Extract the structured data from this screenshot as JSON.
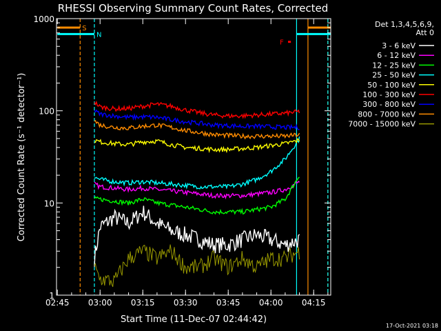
{
  "chart_data": {
    "type": "line",
    "title": "RHESSI Observing Summary Count Rates, Corrected",
    "xlabel": "Start Time (11-Dec-07 02:44:42)",
    "ylabel": "Corrected Count Rate (s⁻¹ detector⁻¹)",
    "xscale": "time",
    "yscale": "log",
    "xlim": [
      "02:44:42",
      "04:21:00"
    ],
    "ylim": [
      1,
      1000
    ],
    "xticks": [
      "02:45",
      "03:00",
      "03:15",
      "03:30",
      "03:45",
      "04:00",
      "04:15"
    ],
    "yticks": [
      "1",
      "10",
      "100",
      "1000"
    ],
    "legend": {
      "title_lines": [
        "Det 1,3,4,5,6,9,",
        "Att 0"
      ],
      "placement": "right-outside"
    },
    "footer_date": "17-Oct-2021 03:18",
    "series": [
      {
        "name": "3 - 6 keV",
        "color": "#ffffff",
        "x": [
          "02:58",
          "03:00",
          "03:05",
          "03:10",
          "03:15",
          "03:20",
          "03:25",
          "03:30",
          "03:35",
          "03:40",
          "03:45",
          "03:50",
          "03:55",
          "04:00",
          "04:05",
          "04:10"
        ],
        "y": [
          2.5,
          5.5,
          7,
          6,
          8,
          6,
          5,
          4.5,
          4,
          3.5,
          3.5,
          4,
          4.5,
          4,
          3.5,
          4
        ]
      },
      {
        "name": "6 - 12 keV",
        "color": "#ff00ff",
        "x": [
          "02:58",
          "03:00",
          "03:05",
          "03:10",
          "03:15",
          "03:20",
          "03:25",
          "03:30",
          "03:35",
          "03:40",
          "03:45",
          "03:50",
          "03:55",
          "04:00",
          "04:05",
          "04:10"
        ],
        "y": [
          16,
          15,
          14.5,
          14,
          14.5,
          14,
          13.5,
          13,
          12.5,
          12,
          12,
          12,
          12.5,
          13,
          14,
          17
        ]
      },
      {
        "name": "12 - 25 keV",
        "color": "#00ff00",
        "x": [
          "02:58",
          "03:00",
          "03:05",
          "03:10",
          "03:15",
          "03:20",
          "03:25",
          "03:30",
          "03:35",
          "03:40",
          "03:45",
          "03:50",
          "03:55",
          "04:00",
          "04:05",
          "04:10"
        ],
        "y": [
          11,
          11,
          10.5,
          10,
          11,
          10,
          9.5,
          9,
          8.5,
          8,
          8,
          8,
          8.5,
          9,
          11,
          20
        ]
      },
      {
        "name": "25 - 50 keV",
        "color": "#00ffff",
        "x": [
          "02:58",
          "03:00",
          "03:05",
          "03:10",
          "03:15",
          "03:20",
          "03:25",
          "03:30",
          "03:35",
          "03:40",
          "03:45",
          "03:50",
          "03:55",
          "04:00",
          "04:05",
          "04:10"
        ],
        "y": [
          19,
          18,
          17,
          16.5,
          17,
          16.5,
          16,
          15.5,
          15,
          15,
          15,
          16,
          18,
          22,
          30,
          50
        ]
      },
      {
        "name": "50 - 100 keV",
        "color": "#ffff00",
        "x": [
          "02:58",
          "03:00",
          "03:05",
          "03:10",
          "03:15",
          "03:20",
          "03:25",
          "03:30",
          "03:35",
          "03:40",
          "03:45",
          "03:50",
          "03:55",
          "04:00",
          "04:05",
          "04:10"
        ],
        "y": [
          48,
          46,
          44,
          43,
          46,
          47,
          43,
          40,
          39,
          38,
          38,
          39,
          40,
          42,
          44,
          48
        ]
      },
      {
        "name": "100 - 300 keV",
        "color": "#ff0000",
        "x": [
          "02:58",
          "03:00",
          "03:05",
          "03:10",
          "03:15",
          "03:20",
          "03:25",
          "03:30",
          "03:35",
          "03:40",
          "03:45",
          "03:50",
          "03:55",
          "04:00",
          "04:05",
          "04:10"
        ],
        "y": [
          125,
          110,
          105,
          106,
          112,
          118,
          112,
          102,
          95,
          90,
          88,
          88,
          90,
          92,
          94,
          98
        ]
      },
      {
        "name": "300 - 800 keV",
        "color": "#0000ff",
        "x": [
          "02:58",
          "03:00",
          "03:05",
          "03:10",
          "03:15",
          "03:20",
          "03:25",
          "03:30",
          "03:35",
          "03:40",
          "03:45",
          "03:50",
          "03:55",
          "04:00",
          "04:05",
          "04:10"
        ],
        "y": [
          100,
          92,
          88,
          85,
          86,
          85,
          80,
          76,
          73,
          70,
          69,
          68,
          68,
          67,
          66,
          66
        ]
      },
      {
        "name": "800 - 7000 keV",
        "color": "#ff8c00",
        "x": [
          "02:58",
          "03:00",
          "03:05",
          "03:10",
          "03:15",
          "03:20",
          "03:25",
          "03:30",
          "03:35",
          "03:40",
          "03:45",
          "03:50",
          "03:55",
          "04:00",
          "04:05",
          "04:10"
        ],
        "y": [
          78,
          70,
          66,
          65,
          68,
          70,
          66,
          61,
          58,
          55,
          54,
          53,
          53,
          53,
          53,
          55
        ]
      },
      {
        "name": "7000 - 15000 keV",
        "color": "#999900",
        "x": [
          "02:58",
          "03:00",
          "03:05",
          "03:10",
          "03:15",
          "03:20",
          "03:25",
          "03:30",
          "03:35",
          "03:40",
          "03:45",
          "03:50",
          "03:55",
          "04:00",
          "04:05",
          "04:10"
        ],
        "y": [
          2,
          1.5,
          1.4,
          2.5,
          3,
          2.5,
          3,
          2,
          2,
          2.5,
          2,
          2.5,
          2,
          2.5,
          2.5,
          3
        ]
      }
    ],
    "markers": [
      {
        "label": "S",
        "color": "#ff8c00",
        "x": "02:53",
        "bar_from": "02:45",
        "bar_to": "02:53",
        "y": 800
      },
      {
        "label": "N",
        "color": "#00ffff",
        "x": "02:58",
        "bar_from": "02:45",
        "bar_to": "02:58",
        "y": 680
      },
      {
        "label": "F",
        "color": "#ff0000",
        "x": "04:06",
        "bar_from": "04:06",
        "bar_to": "04:07",
        "y": 560
      }
    ],
    "vlines": [
      {
        "x": "02:53",
        "color": "#ff8c00",
        "dashed": true
      },
      {
        "x": "02:58",
        "color": "#00ffff",
        "dashed": true
      },
      {
        "x": "04:09",
        "color": "#00ffff",
        "dashed": false
      },
      {
        "x": "04:13",
        "color": "#ff8c00",
        "dashed": false
      },
      {
        "x": "04:20",
        "color": "#ff8c00",
        "dashed": true
      },
      {
        "x": "04:20",
        "color": "#00ffff",
        "dashed": true
      }
    ],
    "right_bars": [
      {
        "color": "#ff8c00",
        "x_from": "04:13",
        "x_to": "04:21",
        "y": 800
      },
      {
        "color": "#00ffff",
        "x_from": "04:09",
        "x_to": "04:21",
        "y": 680
      }
    ]
  }
}
